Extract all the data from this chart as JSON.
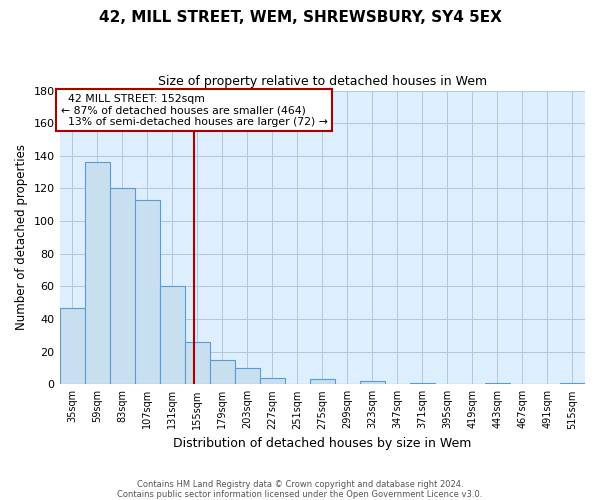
{
  "title": "42, MILL STREET, WEM, SHREWSBURY, SY4 5EX",
  "subtitle": "Size of property relative to detached houses in Wem",
  "xlabel": "Distribution of detached houses by size in Wem",
  "ylabel": "Number of detached properties",
  "bar_labels": [
    "35sqm",
    "59sqm",
    "83sqm",
    "107sqm",
    "131sqm",
    "155sqm",
    "179sqm",
    "203sqm",
    "227sqm",
    "251sqm",
    "275sqm",
    "299sqm",
    "323sqm",
    "347sqm",
    "371sqm",
    "395sqm",
    "419sqm",
    "443sqm",
    "467sqm",
    "491sqm",
    "515sqm"
  ],
  "bar_values": [
    47,
    136,
    120,
    113,
    60,
    26,
    15,
    10,
    4,
    0,
    3,
    0,
    2,
    0,
    1,
    0,
    0,
    1,
    0,
    0,
    1
  ],
  "bar_color": "#c8dff0",
  "bar_edge_color": "#5b9bd5",
  "bg_color": "#ddeeff",
  "ylim": [
    0,
    180
  ],
  "yticks": [
    0,
    20,
    40,
    60,
    80,
    100,
    120,
    140,
    160,
    180
  ],
  "property_size": 152,
  "property_label": "42 MILL STREET: 152sqm",
  "pct_smaller": 87,
  "n_smaller": 464,
  "pct_larger_semi": 13,
  "n_larger_semi": 72,
  "vline_color": "#aa0000",
  "annotation_box_edge_color": "#aa0000",
  "footer_line1": "Contains HM Land Registry data © Crown copyright and database right 2024.",
  "footer_line2": "Contains public sector information licensed under the Open Government Licence v3.0.",
  "bin_width": 24
}
